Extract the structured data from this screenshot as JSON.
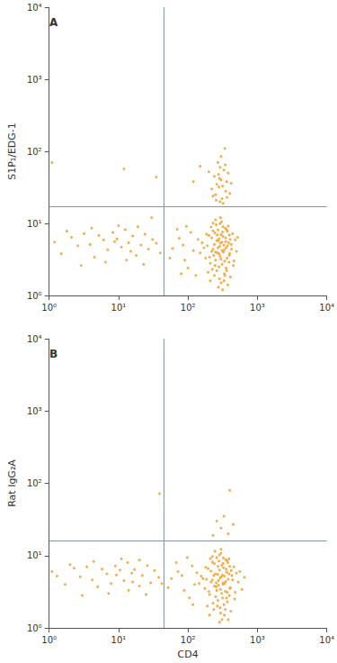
{
  "chart_data": [
    {
      "type": "scatter",
      "title": "A",
      "y_label": "S1P₁/EDG-1",
      "log": true,
      "grid": false,
      "color": "#f2a33a",
      "xlim": [
        1,
        10000
      ],
      "ylim": [
        1,
        10000
      ],
      "xticks": [
        {
          "value": 1,
          "label": "10⁰"
        },
        {
          "value": 10,
          "label": "10¹"
        },
        {
          "value": 100,
          "label": "10²"
        },
        {
          "value": 1000,
          "label": "10³"
        },
        {
          "value": 10000,
          "label": "10⁴"
        }
      ],
      "yticks": [
        {
          "value": 1,
          "label": "10⁰"
        },
        {
          "value": 10,
          "label": "10¹"
        },
        {
          "value": 100,
          "label": "10²"
        },
        {
          "value": 1000,
          "label": "10³"
        },
        {
          "value": 10000,
          "label": "10⁴"
        }
      ],
      "quadrant_lines": {
        "x": 45,
        "y": 17
      },
      "points": [
        [
          250,
          3.1
        ],
        [
          310,
          4.2
        ],
        [
          280,
          2.5
        ],
        [
          350,
          5.6
        ],
        [
          220,
          6.3
        ],
        [
          400,
          3.8
        ],
        [
          330,
          1.6
        ],
        [
          270,
          8.1
        ],
        [
          190,
          4.9
        ],
        [
          360,
          2.2
        ],
        [
          300,
          7.0
        ],
        [
          240,
          1.9
        ],
        [
          420,
          5.1
        ],
        [
          290,
          3.5
        ],
        [
          260,
          5.8
        ],
        [
          380,
          9.2
        ],
        [
          210,
          2.8
        ],
        [
          340,
          3.0
        ],
        [
          230,
          4.4
        ],
        [
          450,
          2.6
        ],
        [
          320,
          6.6
        ],
        [
          275,
          1.3
        ],
        [
          305,
          10.5
        ],
        [
          180,
          3.3
        ],
        [
          395,
          6.9
        ],
        [
          355,
          4.6
        ],
        [
          245,
          7.4
        ],
        [
          285,
          4.8
        ],
        [
          335,
          2.0
        ],
        [
          265,
          3.9
        ],
        [
          160,
          5.4
        ],
        [
          500,
          4.1
        ],
        [
          315,
          1.2
        ],
        [
          225,
          2.3
        ],
        [
          370,
          7.8
        ],
        [
          295,
          5.3
        ],
        [
          255,
          9.6
        ],
        [
          410,
          1.8
        ],
        [
          200,
          6.8
        ],
        [
          345,
          8.6
        ],
        [
          235,
          3.6
        ],
        [
          325,
          4.0
        ],
        [
          440,
          7.2
        ],
        [
          280,
          6.1
        ],
        [
          195,
          2.1
        ],
        [
          365,
          3.3
        ],
        [
          300,
          1.5
        ],
        [
          215,
          8.9
        ],
        [
          390,
          2.9
        ],
        [
          270,
          4.6
        ],
        [
          480,
          5.9
        ],
        [
          250,
          11.2
        ],
        [
          330,
          5.0
        ],
        [
          150,
          3.9
        ],
        [
          310,
          2.7
        ],
        [
          290,
          9.9
        ],
        [
          375,
          1.4
        ],
        [
          240,
          5.1
        ],
        [
          350,
          6.3
        ],
        [
          205,
          3.4
        ],
        [
          425,
          4.4
        ],
        [
          260,
          2.2
        ],
        [
          315,
          7.6
        ],
        [
          185,
          7.1
        ],
        [
          340,
          1.9
        ],
        [
          275,
          5.7
        ],
        [
          395,
          3.6
        ],
        [
          230,
          10.1
        ],
        [
          300,
          3.2
        ],
        [
          360,
          8.2
        ],
        [
          220,
          4.1
        ],
        [
          460,
          3.0
        ],
        [
          285,
          1.7
        ],
        [
          320,
          9.0
        ],
        [
          170,
          4.6
        ],
        [
          405,
          6.0
        ],
        [
          245,
          2.6
        ],
        [
          335,
          4.3
        ],
        [
          265,
          6.9
        ],
        [
          385,
          5.4
        ],
        [
          210,
          1.6
        ],
        [
          295,
          12.0
        ],
        [
          355,
          2.4
        ],
        [
          250,
          4.0
        ],
        [
          520,
          6.4
        ],
        [
          140,
          6.0
        ],
        [
          310,
          5.5
        ],
        [
          280,
          3.8
        ],
        [
          230,
          7.9
        ],
        [
          370,
          4.9
        ],
        [
          60,
          4.5
        ],
        [
          75,
          6.2
        ],
        [
          90,
          3.1
        ],
        [
          110,
          7.5
        ],
        [
          85,
          5.0
        ],
        [
          100,
          2.4
        ],
        [
          70,
          8.3
        ],
        [
          120,
          4.2
        ],
        [
          95,
          9.1
        ],
        [
          55,
          3.3
        ],
        [
          130,
          1.9
        ],
        [
          80,
          2.0
        ],
        [
          1.2,
          5.5
        ],
        [
          1.5,
          3.8
        ],
        [
          2.1,
          6.4
        ],
        [
          2.6,
          4.9
        ],
        [
          3.2,
          7.2
        ],
        [
          3.9,
          5.1
        ],
        [
          4.5,
          3.4
        ],
        [
          5.2,
          6.8
        ],
        [
          6.1,
          5.9
        ],
        [
          7.0,
          4.3
        ],
        [
          8.3,
          7.5
        ],
        [
          9.5,
          6.1
        ],
        [
          11,
          4.7
        ],
        [
          12.5,
          8.2
        ],
        [
          14,
          5.4
        ],
        [
          16,
          6.7
        ],
        [
          18,
          3.6
        ],
        [
          21,
          5.0
        ],
        [
          24,
          7.1
        ],
        [
          27,
          4.4
        ],
        [
          31,
          6.0
        ],
        [
          35,
          5.3
        ],
        [
          40,
          3.9
        ],
        [
          2.9,
          2.6
        ],
        [
          6.5,
          2.9
        ],
        [
          10,
          9.3
        ],
        [
          19,
          9.0
        ],
        [
          13,
          3.1
        ],
        [
          4.1,
          8.6
        ],
        [
          1.8,
          7.8
        ],
        [
          8.8,
          5.6
        ],
        [
          15,
          4.1
        ],
        [
          23,
          2.7
        ],
        [
          30,
          12
        ],
        [
          1.1,
          70
        ],
        [
          12,
          57
        ],
        [
          35,
          44
        ],
        [
          250,
          25
        ],
        [
          300,
          40
        ],
        [
          330,
          55
        ],
        [
          280,
          32
        ],
        [
          350,
          28
        ],
        [
          270,
          70
        ],
        [
          310,
          22
        ],
        [
          240,
          45
        ],
        [
          360,
          38
        ],
        [
          290,
          60
        ],
        [
          320,
          19
        ],
        [
          260,
          35
        ],
        [
          380,
          50
        ],
        [
          230,
          24
        ],
        [
          300,
          85
        ],
        [
          340,
          110
        ],
        [
          275,
          48
        ],
        [
          220,
          30
        ],
        [
          400,
          26
        ],
        [
          290,
          20
        ],
        [
          315,
          33
        ],
        [
          345,
          65
        ],
        [
          255,
          21
        ],
        [
          285,
          42
        ],
        [
          200,
          52
        ],
        [
          365,
          23
        ],
        [
          150,
          62
        ],
        [
          120,
          38
        ],
        [
          420,
          36
        ]
      ]
    },
    {
      "type": "scatter",
      "title": "B",
      "y_label": "Rat IgG₂A",
      "x_label": "CD4",
      "log": true,
      "grid": false,
      "color": "#f2a33a",
      "xlim": [
        1,
        10000
      ],
      "ylim": [
        1,
        10000
      ],
      "xticks": [
        {
          "value": 1,
          "label": "10⁰"
        },
        {
          "value": 10,
          "label": "10¹"
        },
        {
          "value": 100,
          "label": "10²"
        },
        {
          "value": 1000,
          "label": "10³"
        },
        {
          "value": 10000,
          "label": "10⁴"
        }
      ],
      "yticks": [
        {
          "value": 1,
          "label": "10⁰"
        },
        {
          "value": 10,
          "label": "10¹"
        },
        {
          "value": 100,
          "label": "10²"
        },
        {
          "value": 1000,
          "label": "10³"
        },
        {
          "value": 10000,
          "label": "10⁴"
        }
      ],
      "quadrant_lines": {
        "x": 45,
        "y": 16
      },
      "points": [
        [
          260,
          3.3
        ],
        [
          320,
          4.0
        ],
        [
          270,
          2.4
        ],
        [
          360,
          5.9
        ],
        [
          215,
          6.1
        ],
        [
          410,
          3.6
        ],
        [
          335,
          1.5
        ],
        [
          280,
          8.4
        ],
        [
          185,
          4.7
        ],
        [
          370,
          2.3
        ],
        [
          305,
          7.3
        ],
        [
          235,
          1.8
        ],
        [
          430,
          5.3
        ],
        [
          295,
          3.4
        ],
        [
          250,
          5.6
        ],
        [
          390,
          9.0
        ],
        [
          205,
          2.9
        ],
        [
          345,
          3.2
        ],
        [
          225,
          4.6
        ],
        [
          470,
          2.5
        ],
        [
          325,
          6.8
        ],
        [
          285,
          1.2
        ],
        [
          300,
          10.8
        ],
        [
          175,
          3.5
        ],
        [
          400,
          7.1
        ],
        [
          350,
          4.4
        ],
        [
          240,
          7.7
        ],
        [
          290,
          4.9
        ],
        [
          330,
          2.1
        ],
        [
          255,
          3.7
        ],
        [
          155,
          5.2
        ],
        [
          530,
          4.3
        ],
        [
          310,
          1.3
        ],
        [
          230,
          2.2
        ],
        [
          375,
          8.0
        ],
        [
          300,
          5.1
        ],
        [
          260,
          9.4
        ],
        [
          415,
          1.7
        ],
        [
          195,
          6.6
        ],
        [
          350,
          8.8
        ],
        [
          240,
          3.8
        ],
        [
          320,
          4.2
        ],
        [
          460,
          7.0
        ],
        [
          285,
          6.3
        ],
        [
          190,
          2.0
        ],
        [
          370,
          3.1
        ],
        [
          295,
          1.6
        ],
        [
          210,
          9.1
        ],
        [
          395,
          2.8
        ],
        [
          275,
          4.5
        ],
        [
          500,
          5.7
        ],
        [
          245,
          11.5
        ],
        [
          335,
          5.2
        ],
        [
          145,
          4.1
        ],
        [
          315,
          2.6
        ],
        [
          285,
          10.2
        ],
        [
          380,
          1.3
        ],
        [
          235,
          5.3
        ],
        [
          355,
          6.5
        ],
        [
          200,
          3.2
        ],
        [
          440,
          4.6
        ],
        [
          265,
          2.0
        ],
        [
          320,
          7.8
        ],
        [
          180,
          6.9
        ],
        [
          345,
          1.8
        ],
        [
          270,
          5.5
        ],
        [
          400,
          3.5
        ],
        [
          225,
          9.7
        ],
        [
          305,
          3.0
        ],
        [
          365,
          8.5
        ],
        [
          215,
          4.3
        ],
        [
          480,
          3.1
        ],
        [
          290,
          1.9
        ],
        [
          325,
          9.3
        ],
        [
          165,
          4.8
        ],
        [
          420,
          6.2
        ],
        [
          250,
          2.7
        ],
        [
          340,
          4.1
        ],
        [
          270,
          7.1
        ],
        [
          390,
          5.6
        ],
        [
          205,
          1.5
        ],
        [
          300,
          12.2
        ],
        [
          360,
          2.6
        ],
        [
          255,
          4.2
        ],
        [
          560,
          6.0
        ],
        [
          135,
          5.8
        ],
        [
          315,
          5.4
        ],
        [
          275,
          3.9
        ],
        [
          225,
          8.1
        ],
        [
          380,
          4.7
        ],
        [
          600,
          3.4
        ],
        [
          650,
          5.0
        ],
        [
          58,
          4.8
        ],
        [
          72,
          6.0
        ],
        [
          88,
          3.3
        ],
        [
          115,
          7.2
        ],
        [
          82,
          5.3
        ],
        [
          105,
          2.6
        ],
        [
          68,
          8.0
        ],
        [
          125,
          4.0
        ],
        [
          98,
          9.4
        ],
        [
          52,
          3.6
        ],
        [
          118,
          2.1
        ],
        [
          1.3,
          5.2
        ],
        [
          1.7,
          4.0
        ],
        [
          2.3,
          6.7
        ],
        [
          2.8,
          5.1
        ],
        [
          3.5,
          7.0
        ],
        [
          4.2,
          4.6
        ],
        [
          5.0,
          3.7
        ],
        [
          5.8,
          6.5
        ],
        [
          6.8,
          5.6
        ],
        [
          7.8,
          4.1
        ],
        [
          9.0,
          7.2
        ],
        [
          10.5,
          6.3
        ],
        [
          12,
          4.5
        ],
        [
          13.5,
          8.0
        ],
        [
          15.5,
          5.7
        ],
        [
          17,
          6.4
        ],
        [
          20,
          3.8
        ],
        [
          22,
          5.3
        ],
        [
          26,
          7.3
        ],
        [
          29,
          4.2
        ],
        [
          33,
          6.2
        ],
        [
          38,
          5.0
        ],
        [
          42,
          4.1
        ],
        [
          3.0,
          2.8
        ],
        [
          7.2,
          3.0
        ],
        [
          11,
          9.0
        ],
        [
          20,
          8.7
        ],
        [
          14,
          3.3
        ],
        [
          4.4,
          8.3
        ],
        [
          2.0,
          7.5
        ],
        [
          9.3,
          5.4
        ],
        [
          16,
          4.3
        ],
        [
          25,
          2.9
        ],
        [
          1.1,
          6.0
        ],
        [
          39,
          72
        ],
        [
          400,
          80
        ],
        [
          260,
          30
        ],
        [
          300,
          24
        ],
        [
          380,
          20
        ],
        [
          230,
          19
        ],
        [
          330,
          35
        ],
        [
          450,
          27
        ]
      ]
    }
  ]
}
